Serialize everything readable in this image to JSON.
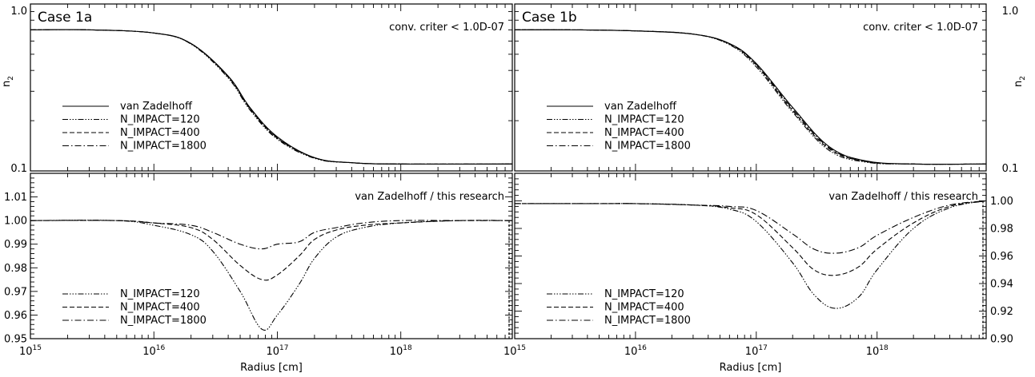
{
  "xlabel": "Radius [cm]",
  "x_ticks": [
    {
      "base": "10",
      "exp": "15"
    },
    {
      "base": "10",
      "exp": "16"
    },
    {
      "base": "10",
      "exp": "17"
    },
    {
      "base": "10",
      "exp": "18"
    }
  ],
  "x_ticks_right": [
    {
      "base": "10",
      "exp": "15"
    },
    {
      "base": "10",
      "exp": "16"
    },
    {
      "base": "10",
      "exp": "17"
    },
    {
      "base": "10",
      "exp": "18"
    }
  ],
  "top_ylabel": {
    "base": "n",
    "sub": "2"
  },
  "top_yticks": [
    "1.0",
    "0.1"
  ],
  "bottom_ylabel_left": "",
  "styles": {
    "van Zadelhoff": "solid",
    "N_IMPACT=120": "dash-dot-dot",
    "N_IMPACT=400": "dashed",
    "N_IMPACT=1800": "dash-dot"
  },
  "chart_data": [
    {
      "type": "line",
      "panel": "top-left",
      "title": "Case 1a",
      "annotation": "conv. criter < 1.0D-07",
      "xscale": "log",
      "yscale": "log",
      "xlim": [
        1000000000000000.0,
        8e+18
      ],
      "ylim": [
        0.1,
        1.0
      ],
      "legend": "lower-left",
      "series": [
        {
          "name": "van Zadelhoff",
          "x": [
            1000000000000000.0,
            3000000000000000.0,
            1e+16,
            2e+16,
            4e+16,
            6e+16,
            1e+17,
            2e+17,
            4e+17,
            1e+18,
            8e+18
          ],
          "y": [
            0.7,
            0.7,
            0.67,
            0.58,
            0.37,
            0.24,
            0.16,
            0.12,
            0.112,
            0.11,
            0.11
          ]
        },
        {
          "name": "N_IMPACT=120",
          "x": [
            1000000000000000.0,
            3000000000000000.0,
            1e+16,
            2e+16,
            4e+16,
            6e+16,
            1e+17,
            2e+17,
            4e+17,
            1e+18,
            8e+18
          ],
          "y": [
            0.7,
            0.7,
            0.67,
            0.575,
            0.36,
            0.232,
            0.155,
            0.119,
            0.112,
            0.11,
            0.11
          ]
        },
        {
          "name": "N_IMPACT=400",
          "x": [
            1000000000000000.0,
            3000000000000000.0,
            1e+16,
            2e+16,
            4e+16,
            6e+16,
            1e+17,
            2e+17,
            4e+17,
            1e+18,
            8e+18
          ],
          "y": [
            0.7,
            0.7,
            0.67,
            0.578,
            0.365,
            0.236,
            0.157,
            0.12,
            0.112,
            0.11,
            0.11
          ]
        },
        {
          "name": "N_IMPACT=1800",
          "x": [
            1000000000000000.0,
            3000000000000000.0,
            1e+16,
            2e+16,
            4e+16,
            6e+16,
            1e+17,
            2e+17,
            4e+17,
            1e+18,
            8e+18
          ],
          "y": [
            0.7,
            0.7,
            0.67,
            0.579,
            0.368,
            0.238,
            0.158,
            0.12,
            0.112,
            0.11,
            0.11
          ]
        }
      ]
    },
    {
      "type": "line",
      "panel": "bottom-left",
      "annotation": "van Zadelhoff / this research",
      "xscale": "log",
      "xlim": [
        1000000000000000.0,
        8e+18
      ],
      "ylim": [
        0.95,
        1.02
      ],
      "yticks": [
        "1.01",
        "1.00",
        "0.99",
        "0.98",
        "0.97",
        "0.96",
        "0.95"
      ],
      "legend": "lower-left",
      "series": [
        {
          "name": "N_IMPACT=120",
          "x": [
            1000000000000000.0,
            5000000000000000.0,
            1e+16,
            2e+16,
            3e+16,
            5e+16,
            7.5e+16,
            1e+17,
            1.5e+17,
            2e+17,
            3e+17,
            5e+17,
            1e+18,
            3e+18,
            8e+18
          ],
          "y": [
            1.0,
            1.0,
            0.998,
            0.994,
            0.987,
            0.97,
            0.954,
            0.96,
            0.973,
            0.984,
            0.993,
            0.997,
            0.999,
            1.0,
            1.0
          ]
        },
        {
          "name": "N_IMPACT=400",
          "x": [
            1000000000000000.0,
            5000000000000000.0,
            1e+16,
            2e+16,
            3e+16,
            5e+16,
            7.5e+16,
            1e+17,
            1.5e+17,
            2e+17,
            3e+17,
            5e+17,
            1e+18,
            3e+18,
            8e+18
          ],
          "y": [
            1.0,
            1.0,
            0.999,
            0.997,
            0.992,
            0.981,
            0.975,
            0.977,
            0.985,
            0.992,
            0.996,
            0.998,
            0.999,
            1.0,
            1.0
          ]
        },
        {
          "name": "N_IMPACT=1800",
          "x": [
            1000000000000000.0,
            5000000000000000.0,
            1e+16,
            2e+16,
            3e+16,
            5e+16,
            7.5e+16,
            1e+17,
            1.5e+17,
            2e+17,
            3e+17,
            5e+17,
            1e+18,
            3e+18,
            8e+18
          ],
          "y": [
            1.0,
            1.0,
            0.999,
            0.998,
            0.995,
            0.99,
            0.988,
            0.99,
            0.991,
            0.995,
            0.997,
            0.999,
            1.0,
            1.0,
            1.0
          ]
        }
      ]
    },
    {
      "type": "line",
      "panel": "top-right",
      "title": "Case 1b",
      "annotation": "conv. criter < 1.0D-07",
      "xscale": "log",
      "yscale": "log",
      "xlim": [
        1000000000000000.0,
        8e+18
      ],
      "ylim": [
        0.1,
        1.0
      ],
      "yticks": [
        "1.0",
        "0.1"
      ],
      "legend": "lower-left",
      "series": [
        {
          "name": "van Zadelhoff",
          "x": [
            1000000000000000.0,
            3000000000000000.0,
            1e+16,
            3e+16,
            6e+16,
            1e+17,
            2e+17,
            4e+17,
            8e+17,
            2e+18,
            8e+18
          ],
          "y": [
            0.7,
            0.7,
            0.69,
            0.66,
            0.58,
            0.44,
            0.24,
            0.14,
            0.115,
            0.11,
            0.11
          ]
        },
        {
          "name": "N_IMPACT=120",
          "x": [
            1000000000000000.0,
            3000000000000000.0,
            1e+16,
            3e+16,
            6e+16,
            1e+17,
            2e+17,
            4e+17,
            8e+17,
            2e+18,
            8e+18
          ],
          "y": [
            0.7,
            0.7,
            0.69,
            0.66,
            0.57,
            0.42,
            0.225,
            0.133,
            0.113,
            0.11,
            0.11
          ]
        },
        {
          "name": "N_IMPACT=400",
          "x": [
            1000000000000000.0,
            3000000000000000.0,
            1e+16,
            3e+16,
            6e+16,
            1e+17,
            2e+17,
            4e+17,
            8e+17,
            2e+18,
            8e+18
          ],
          "y": [
            0.7,
            0.7,
            0.69,
            0.66,
            0.575,
            0.43,
            0.23,
            0.136,
            0.114,
            0.11,
            0.11
          ]
        },
        {
          "name": "N_IMPACT=1800",
          "x": [
            1000000000000000.0,
            3000000000000000.0,
            1e+16,
            3e+16,
            6e+16,
            1e+17,
            2e+17,
            4e+17,
            8e+17,
            2e+18,
            8e+18
          ],
          "y": [
            0.7,
            0.7,
            0.69,
            0.66,
            0.578,
            0.435,
            0.235,
            0.138,
            0.114,
            0.11,
            0.11
          ]
        }
      ]
    },
    {
      "type": "line",
      "panel": "bottom-right",
      "annotation": "van Zadelhoff / this research",
      "xscale": "log",
      "xlim": [
        1000000000000000.0,
        8e+18
      ],
      "ylim": [
        0.9,
        1.02
      ],
      "yticks": [
        "1.00",
        "0.98",
        "0.96",
        "0.94",
        "0.92",
        "0.90"
      ],
      "legend": "lower-left",
      "series": [
        {
          "name": "N_IMPACT=120",
          "x": [
            1000000000000000.0,
            5000000000000000.0,
            1e+16,
            3e+16,
            6e+16,
            1e+17,
            2e+17,
            3e+17,
            4.5e+17,
            7e+17,
            1e+18,
            2e+18,
            4e+18,
            8e+18
          ],
          "y": [
            0.998,
            0.998,
            0.998,
            0.997,
            0.994,
            0.985,
            0.955,
            0.932,
            0.922,
            0.93,
            0.95,
            0.98,
            0.995,
            1.0
          ]
        },
        {
          "name": "N_IMPACT=400",
          "x": [
            1000000000000000.0,
            5000000000000000.0,
            1e+16,
            3e+16,
            6e+16,
            1e+17,
            2e+17,
            3e+17,
            4.5e+17,
            7e+17,
            1e+18,
            2e+18,
            4e+18,
            8e+18
          ],
          "y": [
            0.998,
            0.998,
            0.998,
            0.997,
            0.995,
            0.99,
            0.966,
            0.95,
            0.946,
            0.952,
            0.965,
            0.984,
            0.996,
            1.0
          ]
        },
        {
          "name": "N_IMPACT=1800",
          "x": [
            1000000000000000.0,
            5000000000000000.0,
            1e+16,
            3e+16,
            6e+16,
            1e+17,
            2e+17,
            3e+17,
            4.5e+17,
            7e+17,
            1e+18,
            2e+18,
            4e+18,
            8e+18
          ],
          "y": [
            0.998,
            0.998,
            0.998,
            0.997,
            0.996,
            0.993,
            0.976,
            0.965,
            0.962,
            0.966,
            0.975,
            0.988,
            0.997,
            1.0
          ]
        }
      ]
    }
  ]
}
